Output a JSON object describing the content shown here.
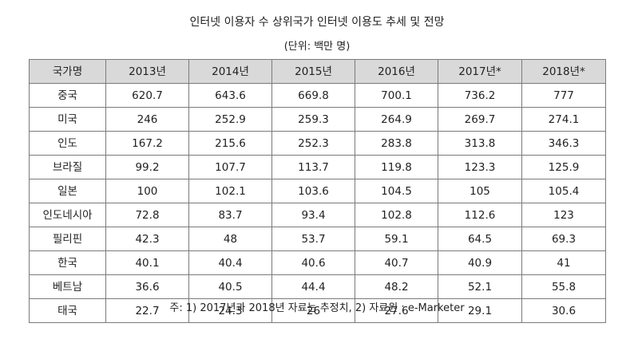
{
  "title": "인터넷 이용자 수 상위국가 인터넷 이용도 추세 및 전망",
  "unit": "(단위: 백만 명)",
  "table": {
    "headers": [
      "국가명",
      "2013년",
      "2014년",
      "2015년",
      "2016년",
      "2017년*",
      "2018년*"
    ],
    "rows": [
      {
        "country": "중국",
        "values": [
          "620.7",
          "643.6",
          "669.8",
          "700.1",
          "736.2",
          "777"
        ]
      },
      {
        "country": "미국",
        "values": [
          "246",
          "252.9",
          "259.3",
          "264.9",
          "269.7",
          "274.1"
        ]
      },
      {
        "country": "인도",
        "values": [
          "167.2",
          "215.6",
          "252.3",
          "283.8",
          "313.8",
          "346.3"
        ]
      },
      {
        "country": "브라질",
        "values": [
          "99.2",
          "107.7",
          "113.7",
          "119.8",
          "123.3",
          "125.9"
        ]
      },
      {
        "country": "일본",
        "values": [
          "100",
          "102.1",
          "103.6",
          "104.5",
          "105",
          "105.4"
        ]
      },
      {
        "country": "인도네시아",
        "values": [
          "72.8",
          "83.7",
          "93.4",
          "102.8",
          "112.6",
          "123"
        ]
      },
      {
        "country": "필리핀",
        "values": [
          "42.3",
          "48",
          "53.7",
          "59.1",
          "64.5",
          "69.3"
        ]
      },
      {
        "country": "한국",
        "values": [
          "40.1",
          "40.4",
          "40.6",
          "40.7",
          "40.9",
          "41"
        ]
      },
      {
        "country": "베트남",
        "values": [
          "36.6",
          "40.5",
          "44.4",
          "48.2",
          "52.1",
          "55.8"
        ]
      },
      {
        "country": "태국",
        "values": [
          "22.7",
          "24.3",
          "26",
          "27.6",
          "29.1",
          "30.6"
        ]
      }
    ]
  },
  "note": "주: 1) 2017년과 2018년 자료는 추정치, 2) 자료원 : e-Marketer"
}
